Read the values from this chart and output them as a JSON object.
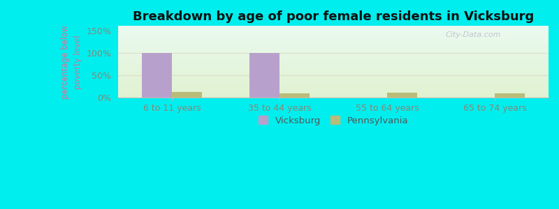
{
  "title": "Breakdown by age of poor female residents in Vicksburg",
  "categories": [
    "6 to 11 years",
    "35 to 44 years",
    "55 to 64 years",
    "65 to 74 years"
  ],
  "vicksburg_values": [
    100,
    100,
    0,
    0
  ],
  "pennsylvania_values": [
    13,
    10,
    11,
    10
  ],
  "vicksburg_color": "#b8a0cc",
  "pennsylvania_color": "#b8bc78",
  "ylabel": "percentage below\npoverty level",
  "ylim": [
    0,
    160
  ],
  "yticks": [
    0,
    50,
    100,
    150
  ],
  "ytick_labels": [
    "0%",
    "50%",
    "100%",
    "150%"
  ],
  "figure_bg": "#00eeee",
  "title_fontsize": 13,
  "bar_width": 0.28,
  "watermark": "City-Data.com"
}
